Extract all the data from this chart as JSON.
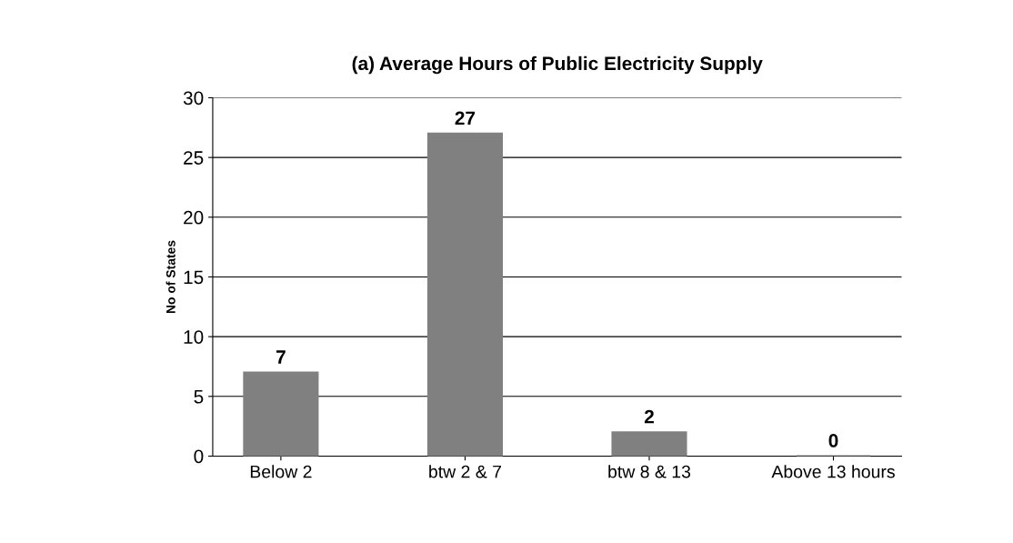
{
  "chart_data": {
    "type": "bar",
    "title": "(a) Average Hours of Public Electricity Supply",
    "ylabel": "No of States",
    "categories": [
      "Below 2",
      "btw 2 & 7",
      "btw 8 & 13",
      "Above 13 hours"
    ],
    "values": [
      7,
      27,
      2,
      0
    ],
    "color": "#808080",
    "ylim": [
      0,
      30
    ],
    "yticks": [
      0,
      5,
      10,
      15,
      20,
      25,
      30
    ],
    "grid": "y",
    "data_labels": true
  }
}
